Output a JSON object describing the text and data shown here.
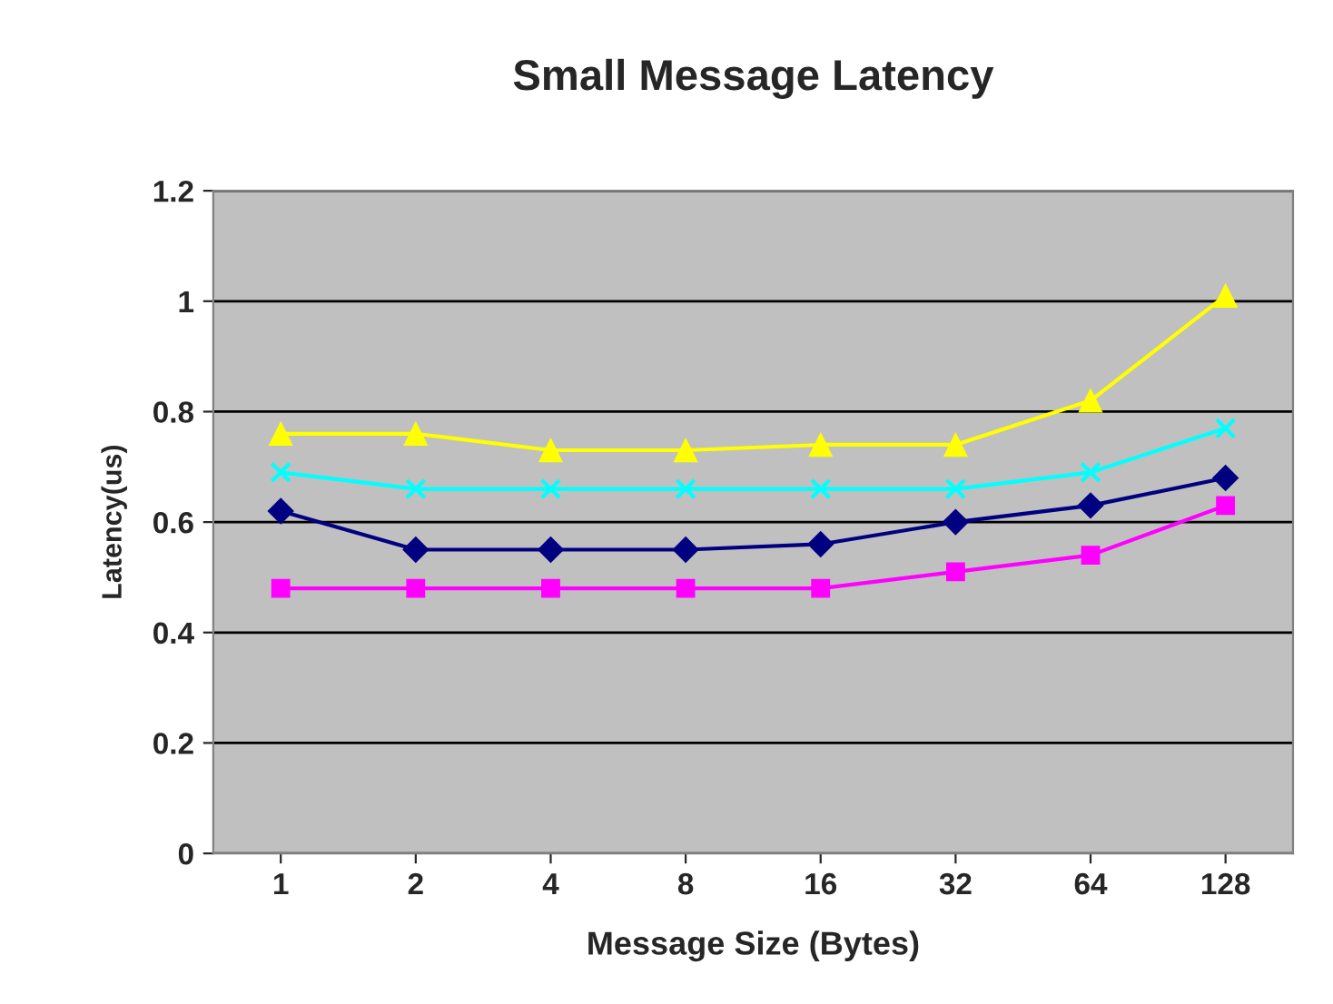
{
  "chart_data": {
    "type": "line",
    "title": "Small Message Latency",
    "xlabel": "Message Size (Bytes)",
    "ylabel": "Latency(us)",
    "categories": [
      "1",
      "2",
      "4",
      "8",
      "16",
      "32",
      "64",
      "128"
    ],
    "series": [
      {
        "color": "#000080",
        "marker": "diamond",
        "values": [
          0.62,
          0.55,
          0.55,
          0.55,
          0.56,
          0.6,
          0.63,
          0.68
        ]
      },
      {
        "color": "#ff00ff",
        "marker": "square",
        "values": [
          0.48,
          0.48,
          0.48,
          0.48,
          0.48,
          0.51,
          0.54,
          0.63
        ]
      },
      {
        "color": "#ffff00",
        "marker": "triangle",
        "values": [
          0.76,
          0.76,
          0.73,
          0.73,
          0.74,
          0.74,
          0.82,
          1.01
        ]
      },
      {
        "color": "#00ffff",
        "marker": "cross",
        "values": [
          0.69,
          0.66,
          0.66,
          0.66,
          0.66,
          0.66,
          0.69,
          0.77
        ]
      }
    ],
    "ylim": [
      0,
      1.2
    ],
    "yticks": [
      0,
      0.2,
      0.4,
      0.6,
      0.8,
      1,
      1.2
    ],
    "grid": "y",
    "line_style": "solid"
  }
}
